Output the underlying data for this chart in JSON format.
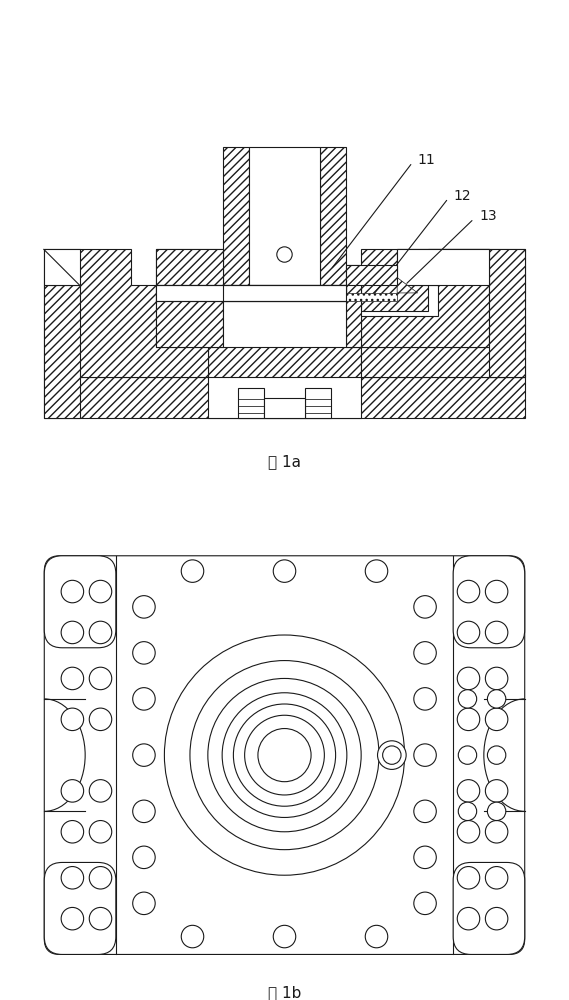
{
  "fig_width": 5.69,
  "fig_height": 10.0,
  "dpi": 100,
  "background_color": "#ffffff",
  "line_color": "#1a1a1a",
  "label_1a": "图 1a",
  "label_1b": "图 1b",
  "label_11": "11",
  "label_12": "12",
  "label_13": "13"
}
